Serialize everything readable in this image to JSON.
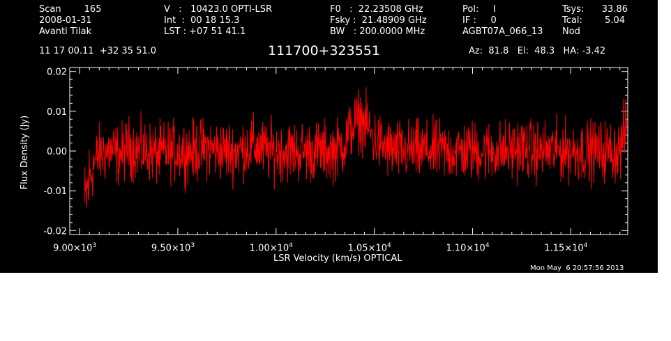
{
  "header": {
    "col1": [
      "Scan        165",
      "2008-01-31",
      "Avanti Tilak"
    ],
    "col2": [
      "V   :   10423.0 OPTI-LSR",
      "Int  :  00 18 15.3",
      "LST : +07 51 41.1"
    ],
    "col3": [
      "F0   :  22.23508 GHz",
      "Fsky :  21.48909 GHz",
      "BW   : 200.0000 MHz"
    ],
    "col4": [
      "Pol:     I",
      "IF :     0",
      "AGBT07A_066_13"
    ],
    "col5a": [
      "Tsys:",
      "Tcal:",
      "Nod"
    ],
    "col5b": [
      "33.86",
      "5.04",
      ""
    ],
    "coords": "11 17 00.11  +32 35 51.0",
    "source": "111700+323551",
    "azelha": "Az:  81.8   El:  48.3   HA: -3.42"
  },
  "footer_date": "Mon May  6 20:57:56 2013",
  "colors": {
    "background": "#000000",
    "axes": "#ffffff",
    "spectrum": "#ff0000"
  },
  "chart_data": {
    "type": "line",
    "xlabel": "LSR Velocity (km/s) OPTICAL",
    "ylabel": "Flux Density (Jy)",
    "xlim": [
      8950,
      11790
    ],
    "ylim": [
      -0.021,
      0.021
    ],
    "xticks": [
      {
        "value": 9000,
        "mant": "9.00",
        "exp": "3"
      },
      {
        "value": 9500,
        "mant": "9.50",
        "exp": "3"
      },
      {
        "value": 10000,
        "mant": "1.00",
        "exp": "4"
      },
      {
        "value": 10500,
        "mant": "1.05",
        "exp": "4"
      },
      {
        "value": 11000,
        "mant": "1.10",
        "exp": "4"
      },
      {
        "value": 11500,
        "mant": "1.15",
        "exp": "4"
      }
    ],
    "yticks": [
      {
        "value": -0.02,
        "label": "-0.02"
      },
      {
        "value": -0.01,
        "label": "-0.01"
      },
      {
        "value": 0.0,
        "label": "0.00"
      },
      {
        "value": 0.01,
        "label": "0.01"
      },
      {
        "value": 0.02,
        "label": "0.02"
      }
    ],
    "series": [
      {
        "x": [
          9025,
          9050,
          9075,
          9100,
          9150,
          9200,
          9250,
          9300,
          9350,
          9400,
          9450,
          9500,
          9550,
          9600,
          9650,
          9700,
          9750,
          9800,
          9850,
          9900,
          9950,
          10000,
          10050,
          10100,
          10150,
          10200,
          10250,
          10300,
          10325,
          10350,
          10375,
          10400,
          10425,
          10450,
          10475,
          10500,
          10550,
          10600,
          10650,
          10700,
          10750,
          10800,
          10850,
          10900,
          10950,
          11000,
          11050,
          11100,
          11150,
          11200,
          11250,
          11300,
          11350,
          11400,
          11450,
          11500,
          11550,
          11600,
          11650,
          11700,
          11750,
          11770,
          11785
        ],
        "y": [
          -0.014,
          -0.007,
          -0.003,
          -0.001,
          0.0,
          -0.001,
          0.001,
          0.0,
          0.0,
          -0.001,
          0.0,
          0.0,
          0.0,
          0.0,
          0.001,
          0.0,
          0.0,
          0.0,
          0.001,
          0.001,
          0.0,
          0.0,
          0.0,
          0.0,
          0.0,
          0.0,
          0.0,
          0.0,
          0.001,
          0.002,
          0.005,
          0.007,
          0.008,
          0.007,
          0.005,
          0.003,
          0.001,
          0.0,
          0.0,
          0.0,
          0.0,
          0.0,
          0.0,
          0.0,
          0.0,
          0.0,
          0.0,
          0.0,
          0.0,
          0.0,
          0.001,
          0.0,
          0.0,
          0.0,
          0.0,
          0.0,
          0.0,
          0.0,
          0.0,
          0.0,
          0.0,
          0.004,
          0.007
        ],
        "noise_amplitude": 0.006
      }
    ]
  }
}
